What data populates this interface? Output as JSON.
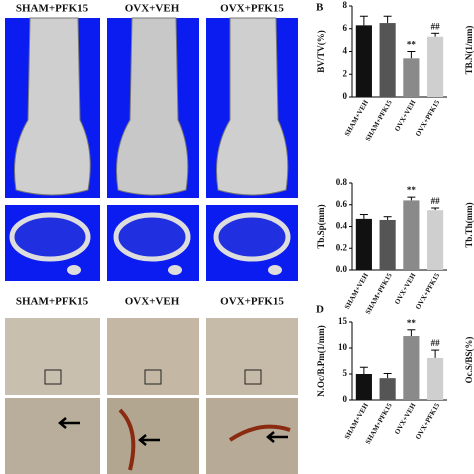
{
  "panel_labels": {
    "b": "B",
    "d": "D"
  },
  "image_labels": {
    "top": [
      "SHAM+PFK15",
      "OVX+VEH",
      "OVX+PFK15"
    ],
    "bottom": [
      "SHAM+PFK15",
      "OVX+VEH",
      "OVX+PFK15"
    ]
  },
  "cut_off_labels": [
    "TB.N(1/mm)",
    "Tb.Th(mm)",
    "Oc.S/BS(%)"
  ],
  "chart_data": [
    {
      "type": "bar",
      "y_label": "BV/TV(%)",
      "categories": [
        "SHAM+VEH",
        "SHAM+PFK15",
        "OVX+VEH",
        "OVX+PFK15"
      ],
      "values": [
        6.3,
        6.5,
        3.4,
        5.3
      ],
      "errors": [
        0.8,
        0.6,
        0.6,
        0.3
      ],
      "annotations": [
        null,
        null,
        "**",
        "##"
      ],
      "colors": [
        "#111111",
        "#555555",
        "#8a8a8a",
        "#cfcfcf"
      ],
      "ylim": [
        0,
        8
      ],
      "yticks": [
        0,
        2,
        4,
        6,
        8
      ]
    },
    {
      "type": "bar",
      "y_label": "Tb.Sp(mm)",
      "categories": [
        "SHAM+VEH",
        "SHAM+PFK15",
        "OVX+VEH",
        "OVX+PFK15"
      ],
      "values": [
        0.47,
        0.46,
        0.64,
        0.55
      ],
      "errors": [
        0.04,
        0.03,
        0.03,
        0.02
      ],
      "annotations": [
        null,
        null,
        "**",
        "##"
      ],
      "colors": [
        "#111111",
        "#555555",
        "#8a8a8a",
        "#cfcfcf"
      ],
      "ylim": [
        0,
        0.8
      ],
      "yticks": [
        {
          "value": 0,
          "label": "0.0"
        },
        0.2,
        0.4,
        0.6,
        0.8
      ]
    },
    {
      "type": "bar",
      "y_label": "N.Oc/B.Pm(1/mm)",
      "categories": [
        "SHAM+VEH",
        "SHAM+PFK15",
        "OVX+VEH",
        "OVX+PFK15"
      ],
      "values": [
        5.0,
        4.2,
        12.3,
        8.1
      ],
      "errors": [
        1.3,
        0.9,
        1.2,
        1.5
      ],
      "annotations": [
        null,
        null,
        "**",
        "##"
      ],
      "colors": [
        "#111111",
        "#555555",
        "#8a8a8a",
        "#cfcfcf"
      ],
      "ylim": [
        0,
        15
      ],
      "yticks": [
        0,
        5,
        10,
        15
      ]
    }
  ]
}
